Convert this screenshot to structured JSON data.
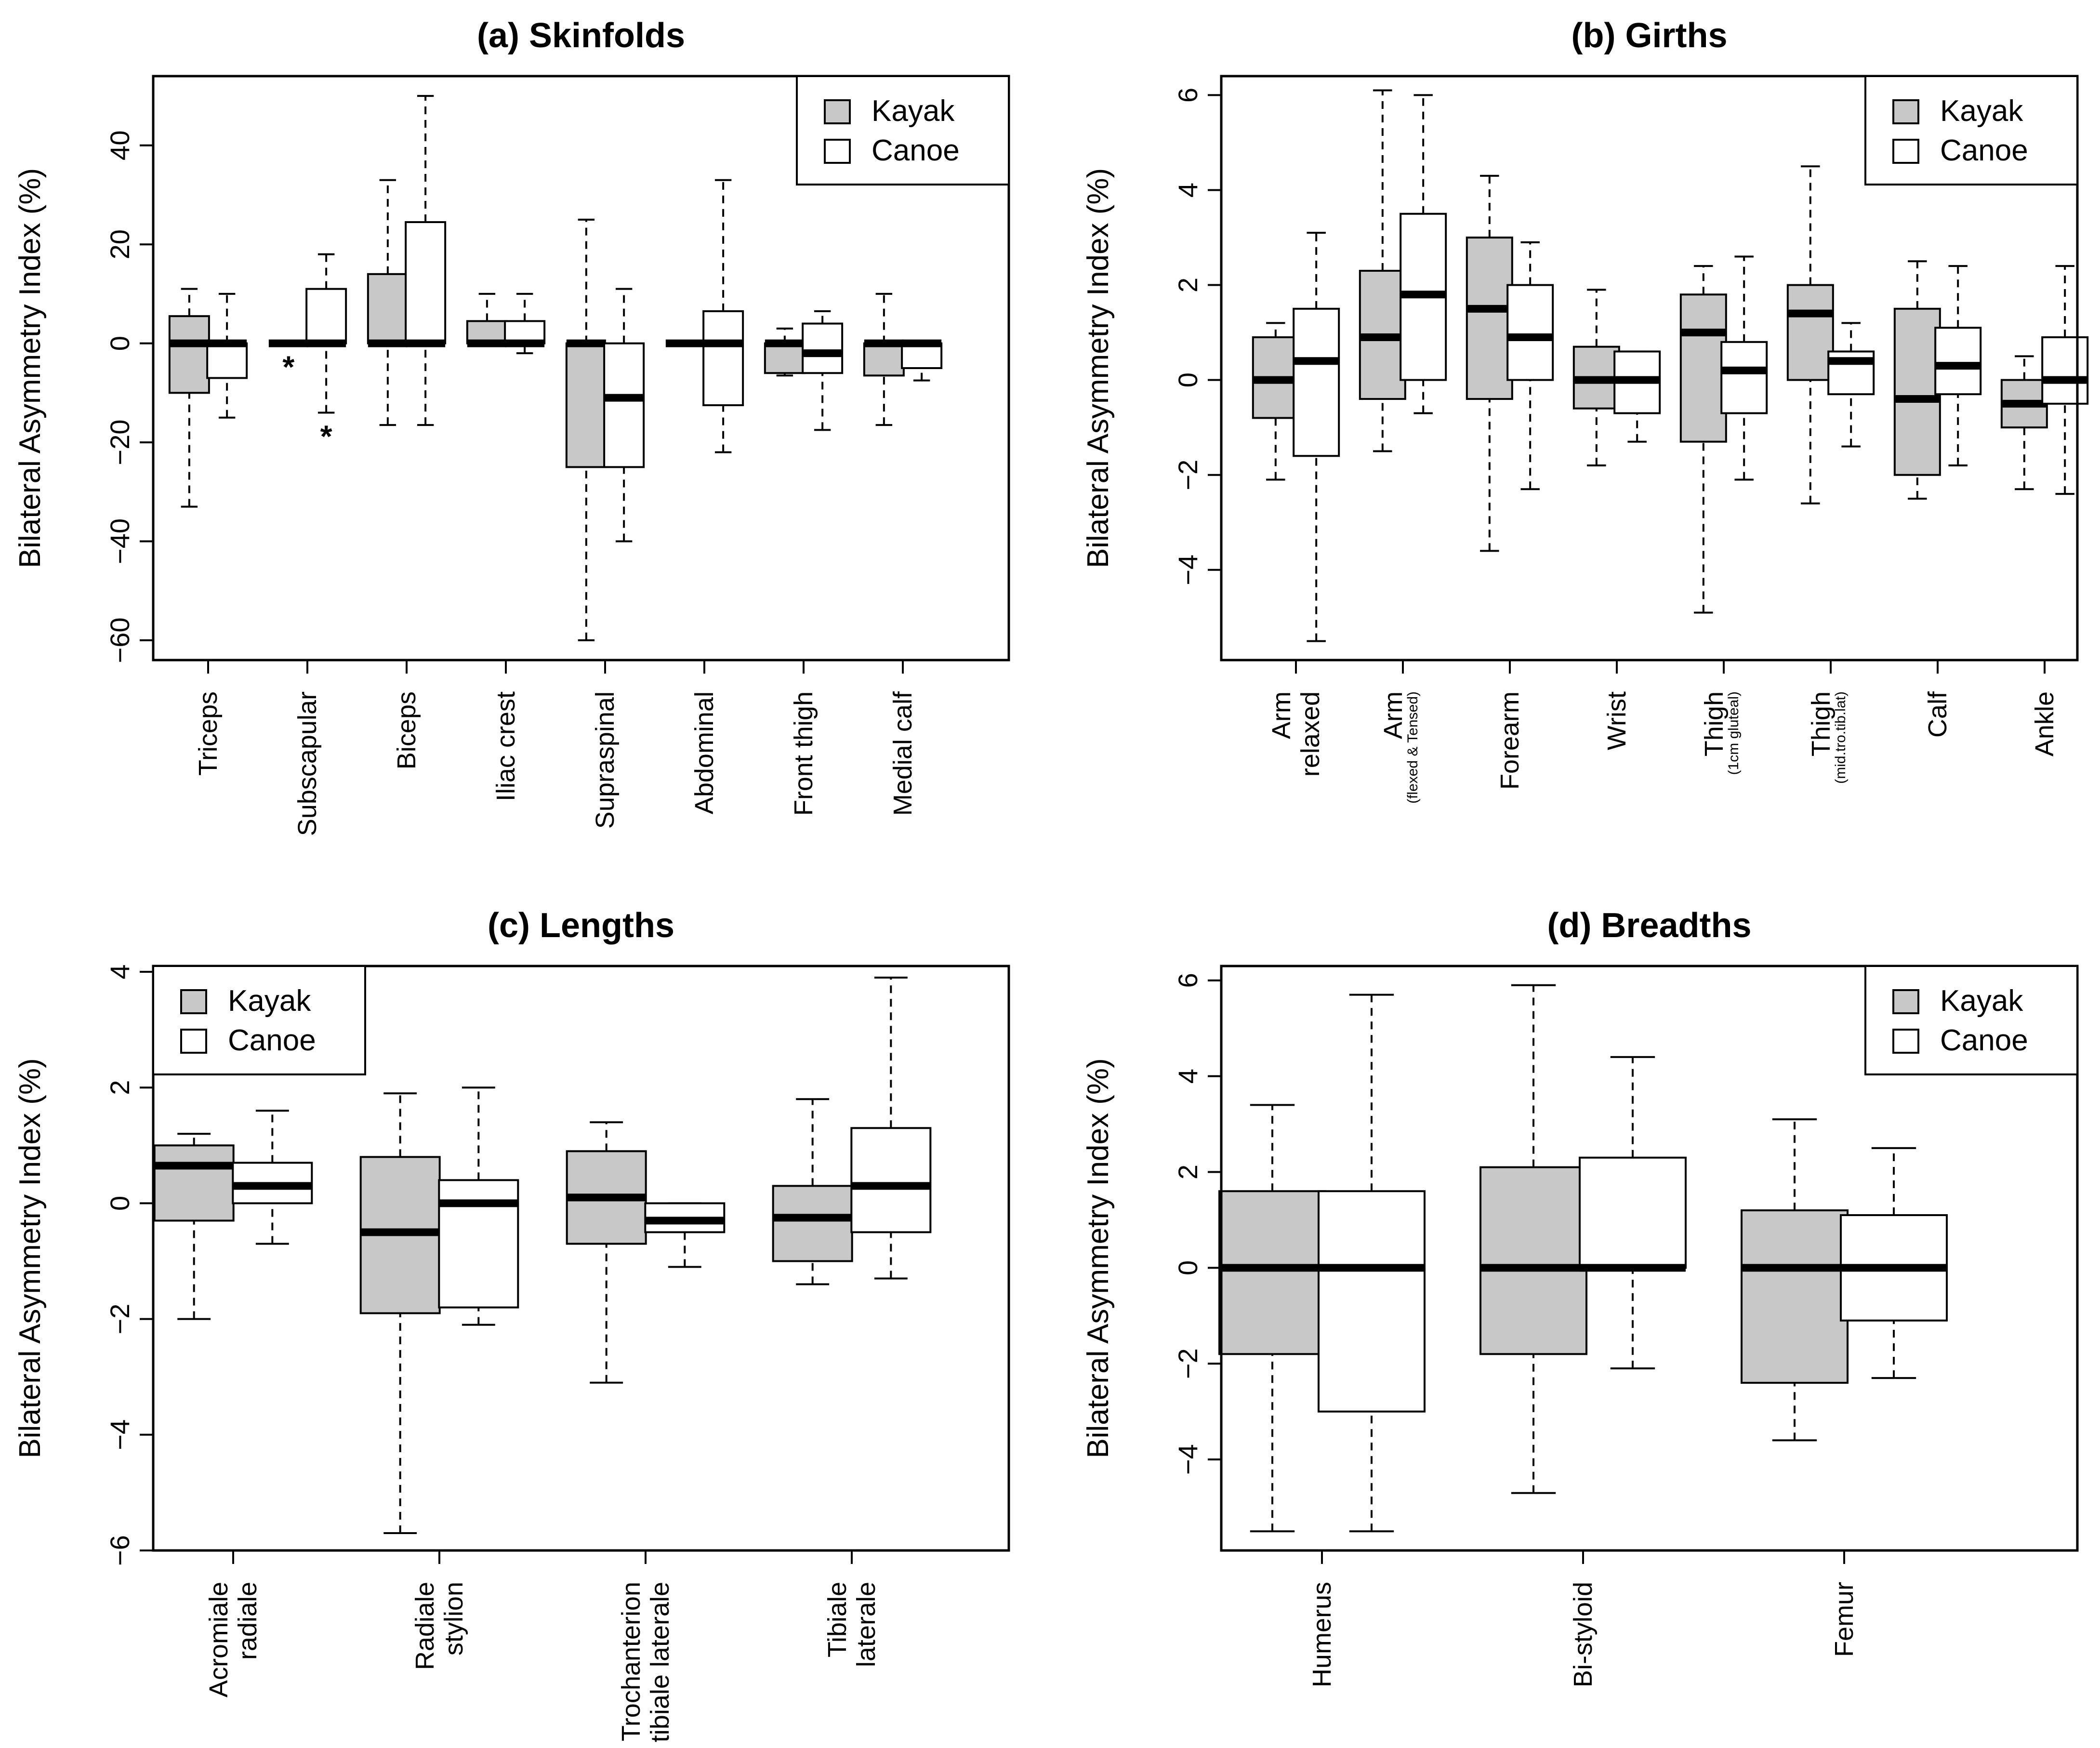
{
  "colors": {
    "kayak": "#c8c8c8",
    "canoe": "#ffffff",
    "line": "#000000"
  },
  "legend": [
    "Kayak",
    "Canoe"
  ],
  "chart_data": [
    {
      "type": "box",
      "title": "(a) Skinfolds",
      "ylabel": "Bilateral Asymmetry Index (%)",
      "ylim": [
        -64,
        54
      ],
      "yticks": [
        -60,
        -40,
        -20,
        0,
        20,
        40
      ],
      "yticklabels": [
        "−60",
        "−40",
        "−20",
        "0",
        "20",
        "40"
      ],
      "legend_position": "top-right",
      "groups": [
        {
          "label": [
            "Triceps"
          ],
          "kayak": {
            "min": -33,
            "q1": -10,
            "median": 0,
            "q3": 5.5,
            "max": 11
          },
          "canoe": {
            "min": -15,
            "q1": -7,
            "median": 0,
            "q3": 0,
            "max": 10
          }
        },
        {
          "label": [
            "Subscapular"
          ],
          "kayak": {
            "min": 0,
            "q1": 0,
            "median": 0,
            "q3": 0,
            "max": 0,
            "outliers": [
              -4
            ]
          },
          "canoe": {
            "min": -14,
            "q1": 0,
            "median": 0,
            "q3": 11,
            "max": 18,
            "outliers": [
              -18
            ]
          }
        },
        {
          "label": [
            "Biceps"
          ],
          "kayak": {
            "min": -16.5,
            "q1": 0,
            "median": 0,
            "q3": 14,
            "max": 33
          },
          "canoe": {
            "min": -16.5,
            "q1": 0,
            "median": 0,
            "q3": 24.5,
            "max": 50
          }
        },
        {
          "label": [
            "Iliac crest"
          ],
          "kayak": {
            "min": 0,
            "q1": 0,
            "median": 0,
            "q3": 4.5,
            "max": 10
          },
          "canoe": {
            "min": -2,
            "q1": 0,
            "median": 0,
            "q3": 4.5,
            "max": 10
          }
        },
        {
          "label": [
            "Supraspinal"
          ],
          "kayak": {
            "min": -60,
            "q1": -25,
            "median": 0,
            "q3": 0,
            "max": 25
          },
          "canoe": {
            "min": -40,
            "q1": -25,
            "median": -11,
            "q3": 0,
            "max": 11
          }
        },
        {
          "label": [
            "Abdominal"
          ],
          "kayak": {
            "min": 0,
            "q1": 0,
            "median": 0,
            "q3": 0,
            "max": 0
          },
          "canoe": {
            "min": -22,
            "q1": -12.5,
            "median": 0,
            "q3": 6.5,
            "max": 33
          }
        },
        {
          "label": [
            "Front thigh"
          ],
          "kayak": {
            "min": -6.5,
            "q1": -6,
            "median": 0,
            "q3": 0,
            "max": 3
          },
          "canoe": {
            "min": -17.5,
            "q1": -6,
            "median": -2,
            "q3": 4,
            "max": 6.5
          }
        },
        {
          "label": [
            "Medial calf"
          ],
          "kayak": {
            "min": -16.5,
            "q1": -6.5,
            "median": 0,
            "q3": 0,
            "max": 10
          },
          "canoe": {
            "min": -7.5,
            "q1": -5,
            "median": 0,
            "q3": 0,
            "max": 0
          }
        }
      ]
    },
    {
      "type": "box",
      "title": "(b) Girths",
      "ylabel": "Bilateral Asymmetry Index (%)",
      "ylim": [
        -5.9,
        6.4
      ],
      "yticks": [
        -4,
        -2,
        0,
        2,
        4,
        6
      ],
      "yticklabels": [
        "−4",
        "−2",
        "0",
        "2",
        "4",
        "6"
      ],
      "legend_position": "top-right",
      "groups": [
        {
          "label": [
            "Arm",
            "relaxed"
          ],
          "kayak": {
            "min": -2.1,
            "q1": -0.8,
            "median": 0,
            "q3": 0.9,
            "max": 1.2
          },
          "canoe": {
            "min": -5.5,
            "q1": -1.6,
            "median": 0.4,
            "q3": 1.5,
            "max": 3.1
          }
        },
        {
          "label": [
            "Arm",
            "(flexed & Tensed)"
          ],
          "kayak": {
            "min": -1.5,
            "q1": -0.4,
            "median": 0.9,
            "q3": 2.3,
            "max": 6.1
          },
          "canoe": {
            "min": -0.7,
            "q1": 0,
            "median": 1.8,
            "q3": 3.5,
            "max": 6
          }
        },
        {
          "label": [
            "Forearm"
          ],
          "kayak": {
            "min": -3.6,
            "q1": -0.4,
            "median": 1.5,
            "q3": 3,
            "max": 4.3
          },
          "canoe": {
            "min": -2.3,
            "q1": 0,
            "median": 0.9,
            "q3": 2,
            "max": 2.9
          }
        },
        {
          "label": [
            "Wrist"
          ],
          "kayak": {
            "min": -1.8,
            "q1": -0.6,
            "median": 0,
            "q3": 0.7,
            "max": 1.9
          },
          "canoe": {
            "min": -1.3,
            "q1": -0.7,
            "median": 0,
            "q3": 0.6,
            "max": 0.6
          }
        },
        {
          "label": [
            "Thigh",
            "(1cm gluteal)"
          ],
          "kayak": {
            "min": -4.9,
            "q1": -1.3,
            "median": 1,
            "q3": 1.8,
            "max": 2.4
          },
          "canoe": {
            "min": -2.1,
            "q1": -0.7,
            "median": 0.2,
            "q3": 0.8,
            "max": 2.6
          }
        },
        {
          "label": [
            "Thigh",
            "(mid.tro.tib.lat)"
          ],
          "kayak": {
            "min": -2.6,
            "q1": 0,
            "median": 1.4,
            "q3": 2,
            "max": 4.5
          },
          "canoe": {
            "min": -1.4,
            "q1": -0.3,
            "median": 0.4,
            "q3": 0.6,
            "max": 1.2
          }
        },
        {
          "label": [
            "Calf"
          ],
          "kayak": {
            "min": -2.5,
            "q1": -2,
            "median": -0.4,
            "q3": 1.5,
            "max": 2.5
          },
          "canoe": {
            "min": -1.8,
            "q1": -0.3,
            "median": 0.3,
            "q3": 1.1,
            "max": 2.4
          }
        },
        {
          "label": [
            "Ankle"
          ],
          "kayak": {
            "min": -2.3,
            "q1": -1,
            "median": -0.5,
            "q3": 0,
            "max": 0.5
          },
          "canoe": {
            "min": -2.4,
            "q1": -0.5,
            "median": 0,
            "q3": 0.9,
            "max": 2.4
          }
        }
      ]
    },
    {
      "type": "box",
      "title": "(c) Lengths",
      "ylabel": "Bilateral Asymmetry Index (%)",
      "ylim": [
        -6,
        4.1
      ],
      "yticks": [
        -6,
        -4,
        -2,
        0,
        2,
        4
      ],
      "yticklabels": [
        "−6",
        "−4",
        "−2",
        "0",
        "2",
        "4"
      ],
      "legend_position": "top-left",
      "groups": [
        {
          "label": [
            "Acromiale",
            "radiale"
          ],
          "kayak": {
            "min": -2,
            "q1": -0.3,
            "median": 0.65,
            "q3": 1,
            "max": 1.2
          },
          "canoe": {
            "min": -0.7,
            "q1": 0,
            "median": 0.3,
            "q3": 0.7,
            "max": 1.6
          }
        },
        {
          "label": [
            "Radiale",
            "stylion"
          ],
          "kayak": {
            "min": -5.7,
            "q1": -1.9,
            "median": -0.5,
            "q3": 0.8,
            "max": 1.9
          },
          "canoe": {
            "min": -2.1,
            "q1": -1.8,
            "median": 0,
            "q3": 0.4,
            "max": 2
          }
        },
        {
          "label": [
            "Trochanterion",
            "tibiale laterale"
          ],
          "kayak": {
            "min": -3.1,
            "q1": -0.7,
            "median": 0.1,
            "q3": 0.9,
            "max": 1.4
          },
          "canoe": {
            "min": -1.1,
            "q1": -0.5,
            "median": -0.3,
            "q3": 0,
            "max": 0
          }
        },
        {
          "label": [
            "Tibiale",
            "laterale"
          ],
          "kayak": {
            "min": -1.4,
            "q1": -1,
            "median": -0.25,
            "q3": 0.3,
            "max": 1.8
          },
          "canoe": {
            "min": -1.3,
            "q1": -0.5,
            "median": 0.3,
            "q3": 1.3,
            "max": 3.9
          }
        }
      ]
    },
    {
      "type": "box",
      "title": "(d) Breadths",
      "ylabel": "Bilateral Asymmetry Index (%)",
      "ylim": [
        -5.9,
        6.3
      ],
      "yticks": [
        -4,
        -2,
        0,
        2,
        4,
        6
      ],
      "yticklabels": [
        "−4",
        "−2",
        "0",
        "2",
        "4",
        "6"
      ],
      "legend_position": "top-right",
      "groups": [
        {
          "label": [
            "Humerus"
          ],
          "kayak": {
            "min": -5.5,
            "q1": -1.8,
            "median": 0,
            "q3": 1.6,
            "max": 3.4
          },
          "canoe": {
            "min": -5.5,
            "q1": -3,
            "median": 0,
            "q3": 1.6,
            "max": 5.7
          }
        },
        {
          "label": [
            "Bi-styloid"
          ],
          "kayak": {
            "min": -4.7,
            "q1": -1.8,
            "median": 0,
            "q3": 2.1,
            "max": 5.9
          },
          "canoe": {
            "min": -2.1,
            "q1": 0,
            "median": 0,
            "q3": 2.3,
            "max": 4.4
          }
        },
        {
          "label": [
            "Femur"
          ],
          "kayak": {
            "min": -3.6,
            "q1": -2.4,
            "median": 0,
            "q3": 1.2,
            "max": 3.1
          },
          "canoe": {
            "min": -2.3,
            "q1": -1.1,
            "median": 0,
            "q3": 1.1,
            "max": 2.5
          }
        }
      ]
    }
  ]
}
